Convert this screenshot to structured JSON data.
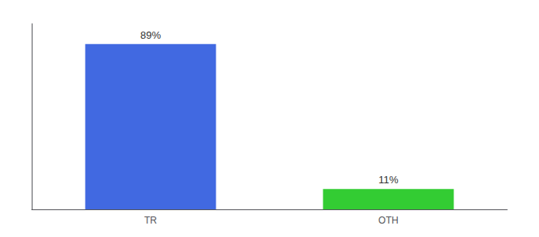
{
  "chart_data": {
    "type": "bar",
    "categories": [
      "TR",
      "OTH"
    ],
    "values": [
      89,
      11
    ],
    "value_labels": [
      "89%",
      "11%"
    ],
    "data_labels": true,
    "colors": [
      "#4169e1",
      "#33cc33"
    ],
    "ylim": [
      0,
      100
    ],
    "grid": false,
    "tick_labels": "x"
  }
}
